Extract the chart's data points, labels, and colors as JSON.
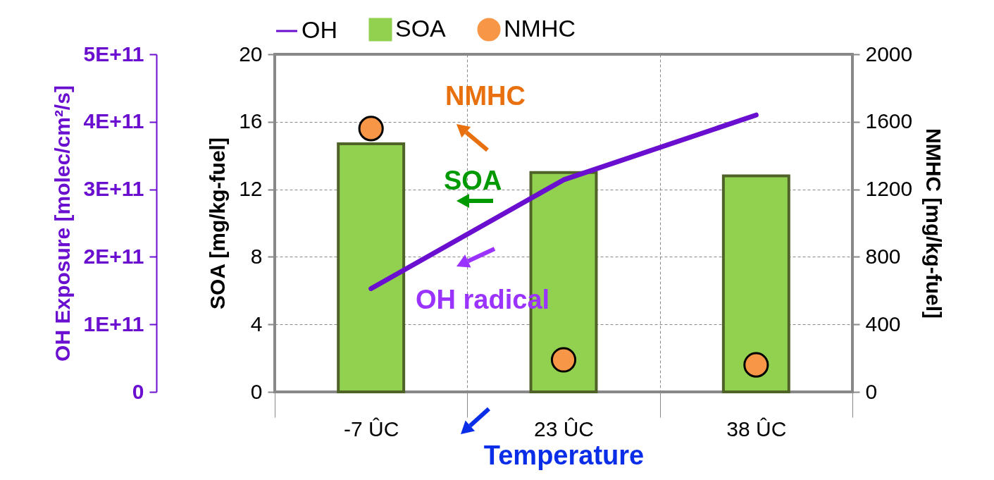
{
  "chart_data": {
    "type": "bar",
    "categories": [
      "-7 ÛC",
      "23 ÛC",
      "38 ÛC"
    ],
    "xlabel": "Temperature",
    "ylabel": "SOA [mg/kg-fuel]",
    "y2label": "NMHC [mg/kg-fuel]",
    "y3label": "OH Exposure [molec/cm²/s]",
    "ylim": [
      0,
      20
    ],
    "yticks": [
      0,
      4,
      8,
      12,
      16,
      20
    ],
    "y2lim": [
      0,
      2000
    ],
    "y2ticks": [
      0,
      400,
      800,
      1200,
      1600,
      2000
    ],
    "y3lim": [
      0,
      500000000000
    ],
    "y3ticks": [
      0,
      {
        "value": 100000000000,
        "label": "1E+11"
      },
      {
        "value": 200000000000,
        "label": "2E+11"
      },
      {
        "value": 300000000000,
        "label": "3E+11"
      },
      {
        "value": 400000000000,
        "label": "4E+11"
      },
      {
        "value": 500000000000,
        "label": "5E+11"
      }
    ],
    "series": [
      {
        "name": "OH",
        "type": "line",
        "axis": "y3",
        "color": "#6a0fcf",
        "values": [
          153000000000,
          314000000000,
          410000000000
        ]
      },
      {
        "name": "SOA",
        "color": "#92d050",
        "values": [
          14.7,
          13.0,
          12.8
        ]
      },
      {
        "name": "NMHC",
        "type": "scatter",
        "axis": "y2",
        "color": "#f79646",
        "marker": "circle",
        "values": [
          1560,
          190,
          160
        ]
      }
    ],
    "annotations": [
      "NMHC",
      "SOA",
      "OH radical"
    ],
    "grid": true,
    "legend": "top"
  }
}
